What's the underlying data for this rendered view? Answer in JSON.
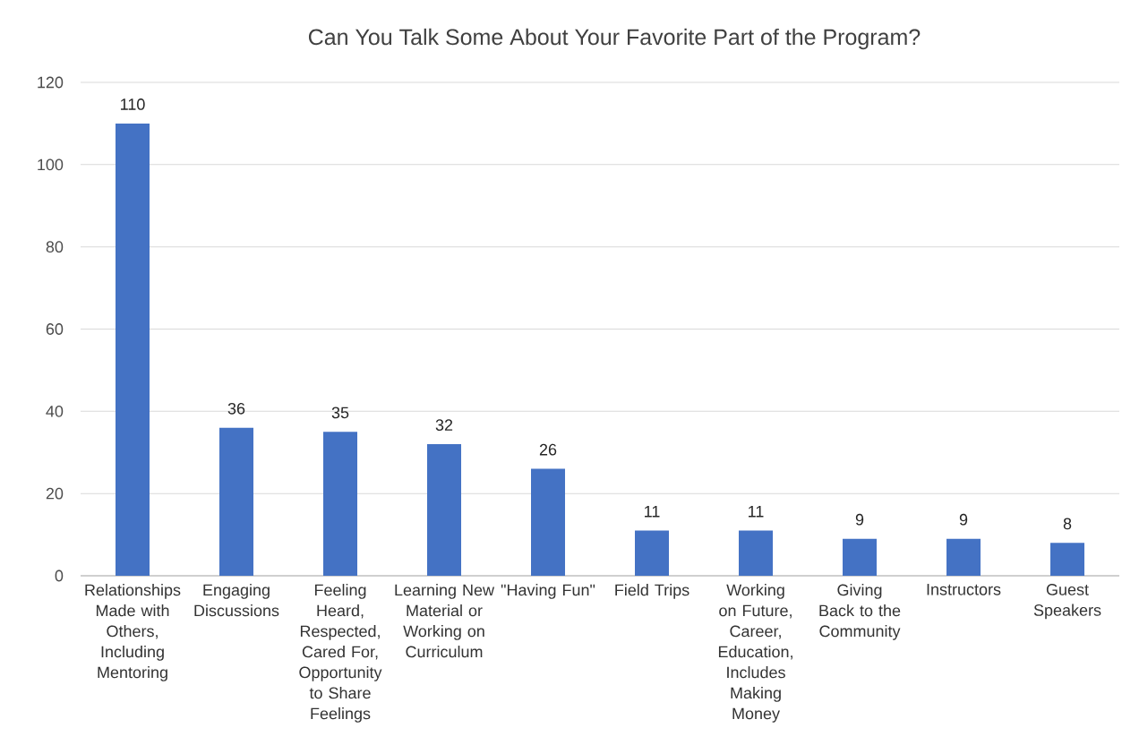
{
  "chart_data": {
    "type": "bar",
    "title": "Can You Talk Some About Your Favorite Part of the Program?",
    "categories": [
      "Relationships Made with Others, Including Mentoring",
      "Engaging Discussions",
      "Feeling Heard, Respected, Cared For, Opportunity to Share Feelings",
      "Learning New Material or Working on Curriculum",
      "\"Having Fun\"",
      "Field Trips",
      "Working on Future, Career, Education, Includes Making Money",
      "Giving Back to the Community",
      "Instructors",
      "Guest Speakers"
    ],
    "values": [
      110,
      36,
      35,
      32,
      26,
      11,
      11,
      9,
      9,
      8
    ],
    "color": "#4472c4",
    "ylim": [
      0,
      120
    ],
    "yticks": [
      0,
      20,
      40,
      60,
      80,
      100,
      120
    ],
    "grid": "y",
    "data_labels": true
  }
}
